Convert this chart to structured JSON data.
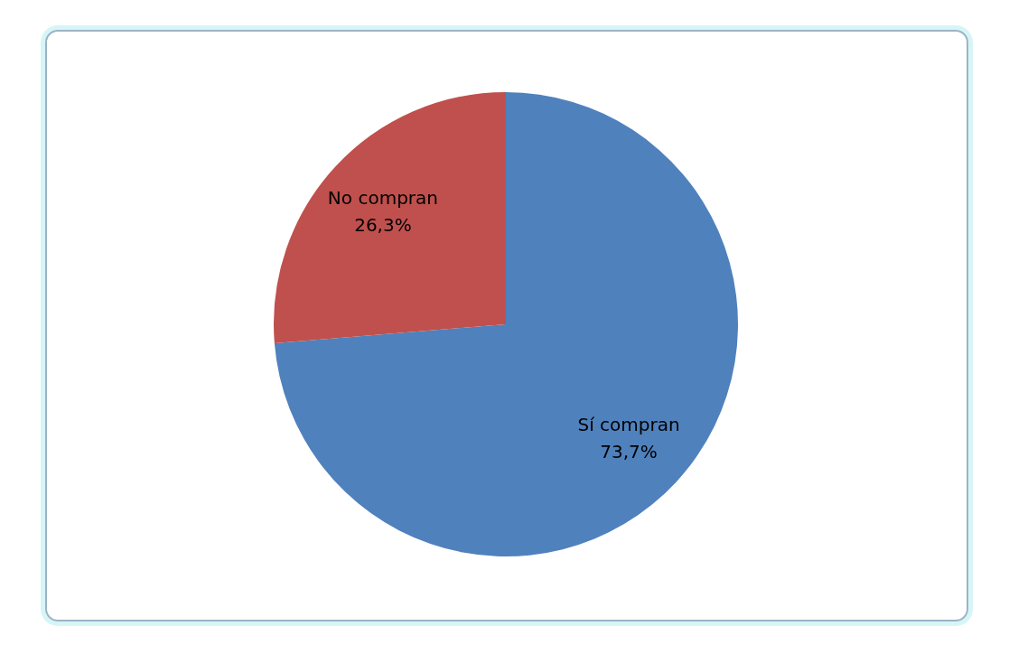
{
  "chart_data": {
    "type": "pie",
    "categories": [
      "Sí compran",
      "No compran"
    ],
    "values": [
      73.7,
      26.3
    ],
    "colors": [
      "#4f81bd",
      "#c0504d"
    ],
    "value_labels": [
      "73,7%",
      "26,3%"
    ],
    "legend": false
  }
}
